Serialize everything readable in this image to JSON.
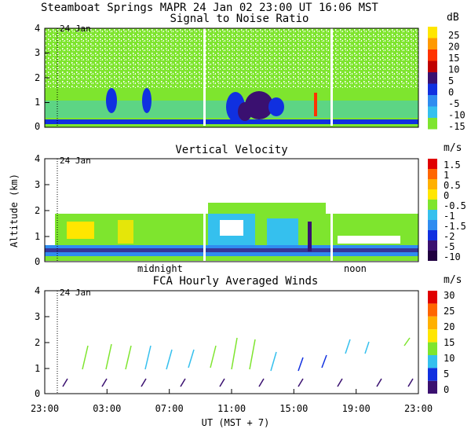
{
  "header": {
    "title": "Steamboat Springs  MAPR 24 Jan 02  23:00 UT  16:06  MST"
  },
  "colors": {
    "background": "#ffffff",
    "axis": "#000000",
    "green": "#7ee52e",
    "cyan": "#35b8ee",
    "blue": "#1030e0",
    "purple": "#3a1070"
  },
  "chart_data": [
    {
      "type": "heatmap",
      "title": "Signal to Noise Ratio",
      "ylim": [
        0,
        4
      ],
      "yticks": [
        "0",
        "1",
        "2",
        "3",
        "4"
      ],
      "xlim": [
        0,
        24
      ],
      "xticks": [
        0,
        4,
        8,
        12,
        16,
        20,
        24
      ],
      "date_marker": {
        "x_hours": 1.0,
        "label": "24 Jan"
      },
      "colorbar": {
        "unit": "dB",
        "labels": [
          "25",
          "20",
          "15",
          "10",
          "5",
          "0",
          "-5",
          "-10",
          "-15"
        ],
        "colors": [
          "#ffe600",
          "#ff9900",
          "#ff3300",
          "#c00000",
          "#3a1070",
          "#1030e0",
          "#2f8cf0",
          "#35c0ee",
          "#7ee52e"
        ]
      }
    },
    {
      "type": "heatmap",
      "title": "Vertical Velocity",
      "ylabel": "Altitude (km)",
      "ylim": [
        0,
        4
      ],
      "yticks": [
        "0",
        "1",
        "2",
        "3",
        "4"
      ],
      "xlim": [
        0,
        24
      ],
      "date_marker": {
        "x_hours": 1.0,
        "label": "24 Jan"
      },
      "time_markers": [
        {
          "x_hours": 7.7,
          "label": "midnight"
        },
        {
          "x_hours": 19.0,
          "label": "noon"
        }
      ],
      "colorbar": {
        "unit": "m/s",
        "labels": [
          "1.5",
          "1",
          "0.5",
          "0",
          "-0.5",
          "-1",
          "-1.5",
          "-2",
          "-5",
          "-10"
        ],
        "colors": [
          "#e00000",
          "#ff6600",
          "#ffb000",
          "#ffe600",
          "#7ee52e",
          "#35c0ee",
          "#2f8cf0",
          "#1030e0",
          "#3a1070",
          "#200040"
        ]
      }
    },
    {
      "type": "barbs",
      "title": "FCA Hourly Averaged Winds",
      "xlabel": "UT  (MST + 7)",
      "ylim": [
        0,
        4
      ],
      "yticks": [
        "0",
        "1",
        "2",
        "3",
        "4"
      ],
      "xlim": [
        0,
        24
      ],
      "xtick_labels": [
        "23:00",
        "03:00",
        "07:00",
        "11:00",
        "15:00",
        "19:00",
        "23:00"
      ],
      "date_marker": {
        "x_hours": 1.0,
        "label": "24 Jan"
      },
      "colorbar": {
        "unit": "m/s",
        "labels": [
          "30",
          "25",
          "20",
          "15",
          "10",
          "5",
          "0"
        ],
        "colors": [
          "#e00000",
          "#ff6600",
          "#ffb000",
          "#ffe600",
          "#7ee52e",
          "#35c0ee",
          "#1030e0",
          "#3a1070"
        ]
      }
    }
  ]
}
